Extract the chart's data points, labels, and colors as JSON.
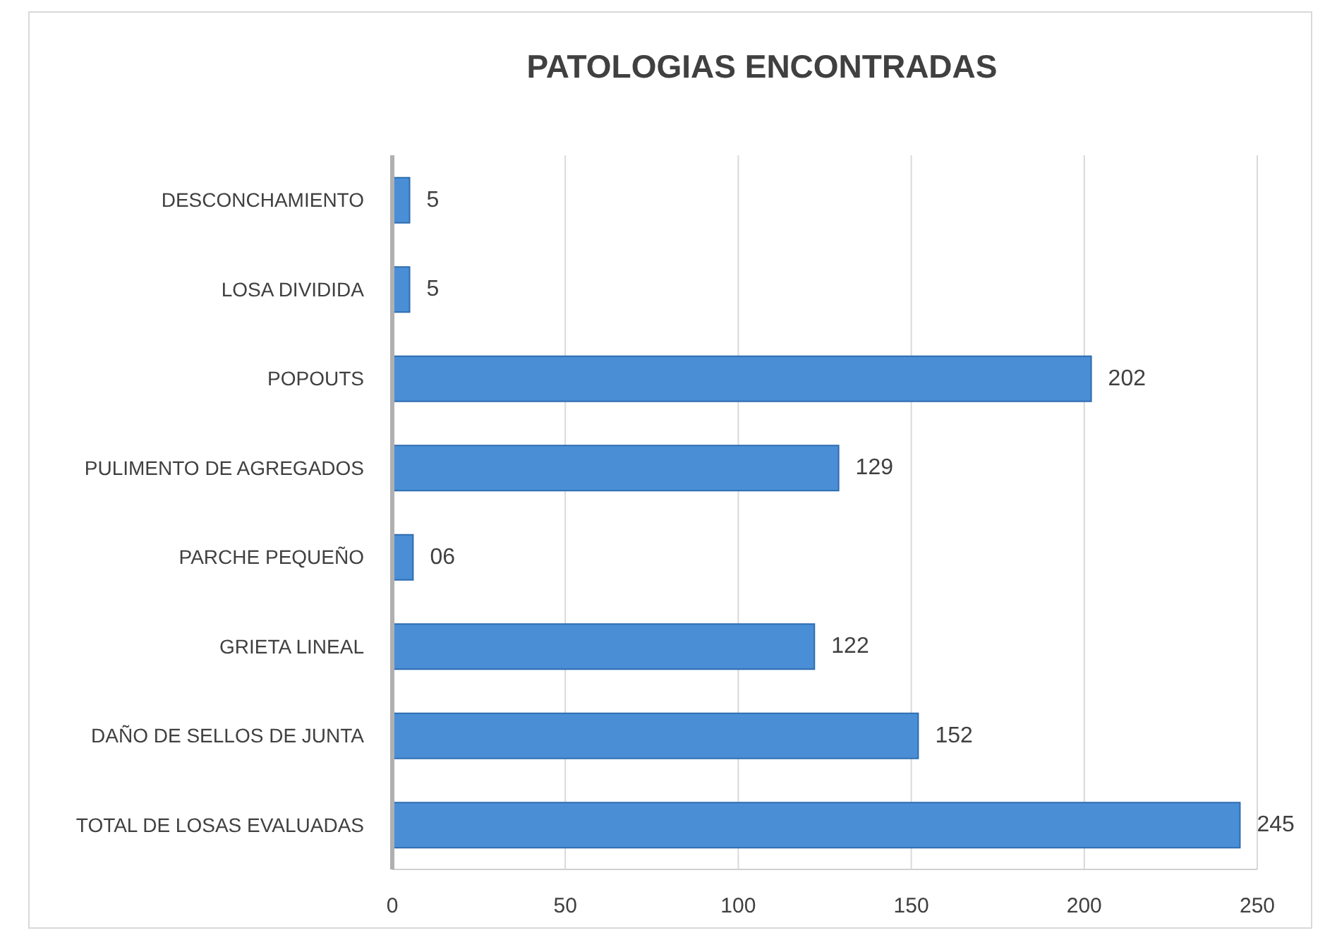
{
  "chart_data": {
    "type": "bar",
    "title": "PATOLOGIAS ENCONTRADAS",
    "orientation": "horizontal",
    "categories": [
      "DESCONCHAMIENTO",
      "LOSA DIVIDIDA",
      "POPOUTS",
      "PULIMENTO DE AGREGADOS",
      "PARCHE PEQUEÑO",
      "GRIETA LINEAL",
      "DAÑO DE SELLOS DE JUNTA",
      "TOTAL DE LOSAS EVALUADAS"
    ],
    "values": [
      5,
      5,
      202,
      129,
      6,
      122,
      152,
      245
    ],
    "value_labels": [
      "5",
      "5",
      "202",
      "129",
      "06",
      "122",
      "152",
      "245"
    ],
    "color": "#4a8fd6",
    "xlim": [
      0,
      250
    ],
    "xticks": [
      0,
      50,
      100,
      150,
      200,
      250
    ],
    "grid": "x"
  }
}
